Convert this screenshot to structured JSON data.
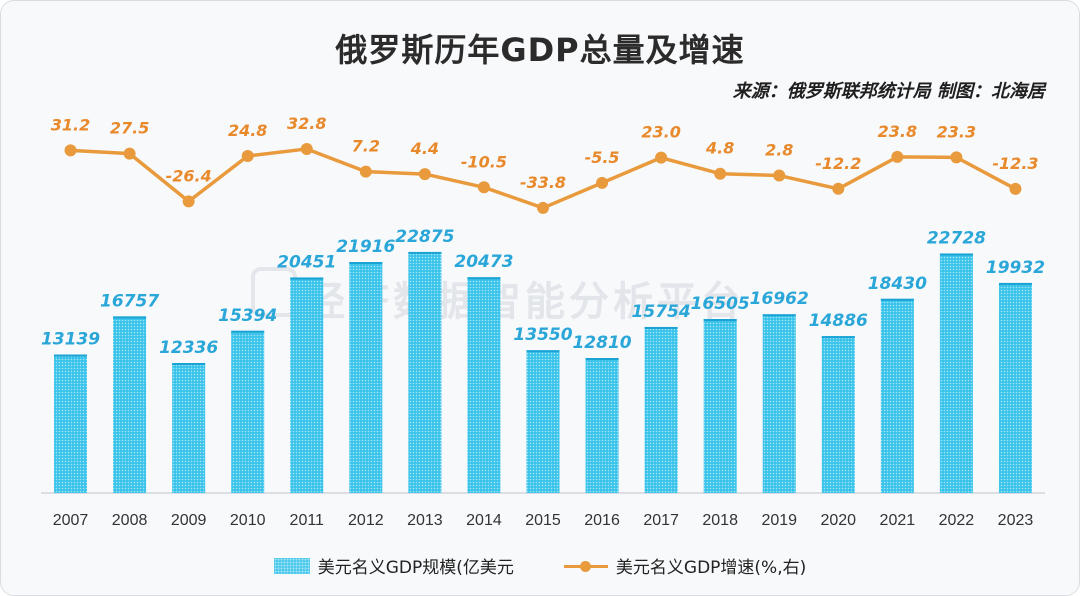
{
  "chart_data": {
    "type": "bar",
    "title": "俄罗斯历年GDP总量及增速",
    "source": "来源：俄罗斯联邦统计局  制图：北海居",
    "watermark": "经济数据智能分析平台",
    "categories": [
      "2007",
      "2008",
      "2009",
      "2010",
      "2011",
      "2012",
      "2013",
      "2014",
      "2015",
      "2016",
      "2017",
      "2018",
      "2019",
      "2020",
      "2021",
      "2022",
      "2023"
    ],
    "series": [
      {
        "name": "美元名义GDP规模(亿美元",
        "type": "bar",
        "axis": "left",
        "values": [
          13139,
          16757,
          12336,
          15394,
          20451,
          21916,
          22875,
          20473,
          13550,
          12810,
          15754,
          16505,
          16962,
          14886,
          18430,
          22728,
          19932
        ]
      },
      {
        "name": "美元名义GDP增速(%,右)",
        "type": "line",
        "axis": "right",
        "values": [
          31.2,
          27.5,
          -26.4,
          24.8,
          32.8,
          7.2,
          4.4,
          -10.5,
          -33.8,
          -5.5,
          23.0,
          4.8,
          2.8,
          -12.2,
          23.8,
          23.3,
          -12.3
        ],
        "labels": [
          "31.2",
          "27.5",
          "-26.4",
          "24.8",
          "32.8",
          "7.2",
          "4.4",
          "-10.5",
          "-33.8",
          "-5.5",
          "23.0",
          "4.8",
          "2.8",
          "-12.2",
          "23.8",
          "23.3",
          "-12.3"
        ]
      }
    ],
    "ylim_left": [
      0,
      26000
    ],
    "ylim_right": [
      -35,
      35
    ],
    "grid": false,
    "legend_position": "bottom",
    "colors": {
      "bar": "#39c3ea",
      "line": "#e89a3c",
      "bar_label": "#2aa7d8",
      "line_label": "#e88a2c"
    }
  }
}
